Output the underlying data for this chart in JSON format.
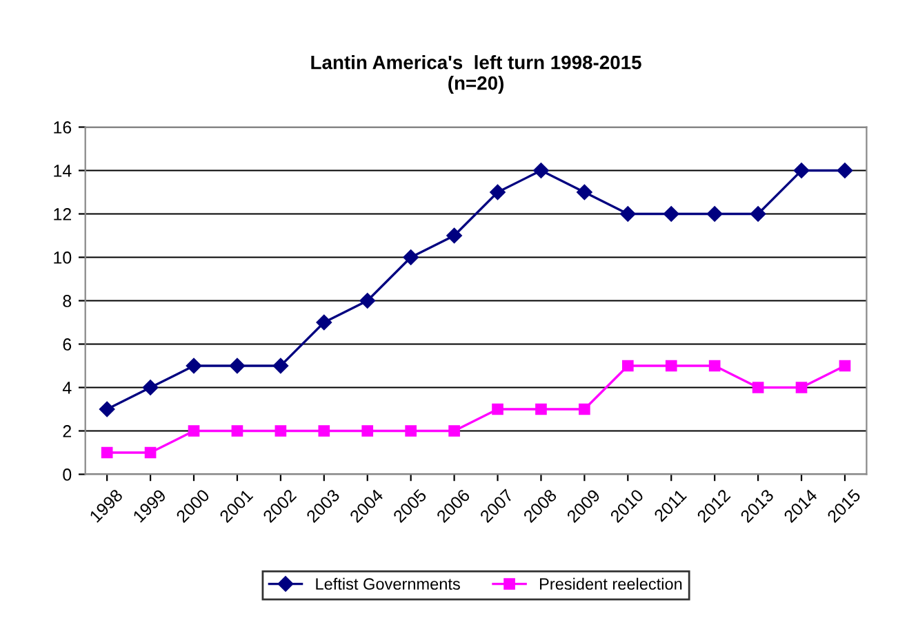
{
  "chart_data": {
    "type": "line",
    "title": "Lantin America's  left turn 1998-2015\n(n=20)",
    "categories": [
      "1998",
      "1999",
      "2000",
      "2001",
      "2002",
      "2003",
      "2004",
      "2005",
      "2006",
      "2007",
      "2008",
      "2009",
      "2010",
      "2011",
      "2012",
      "2013",
      "2014",
      "2015"
    ],
    "series": [
      {
        "name": "Leftist Governments",
        "color": "#000080",
        "marker": "diamond",
        "values": [
          3,
          4,
          5,
          5,
          5,
          7,
          8,
          10,
          11,
          13,
          14,
          13,
          12,
          12,
          12,
          12,
          14,
          14
        ]
      },
      {
        "name": "President reelection",
        "color": "#ff00ff",
        "marker": "square",
        "values": [
          1,
          1,
          2,
          2,
          2,
          2,
          2,
          2,
          2,
          3,
          3,
          3,
          5,
          5,
          5,
          4,
          4,
          5
        ]
      }
    ],
    "ylim": [
      0,
      16
    ],
    "yticks": [
      0,
      2,
      4,
      6,
      8,
      10,
      12,
      14,
      16
    ],
    "grid": "y",
    "legend": "bottom",
    "line_style": "solid"
  }
}
